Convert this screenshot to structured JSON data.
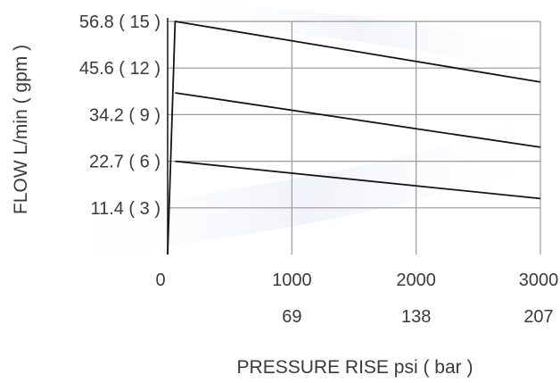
{
  "chart_data": {
    "type": "line",
    "title": "",
    "xlabel": "PRESSURE RISE psi ( bar )",
    "ylabel": "FLOW L/min ( gpm )",
    "xlim": [
      0,
      3000
    ],
    "ylim": [
      0,
      15
    ],
    "grid": true,
    "x_ticks": [
      {
        "value": 0,
        "label": "0",
        "sublabel": ""
      },
      {
        "value": 1000,
        "label": "1000",
        "sublabel": "69"
      },
      {
        "value": 2000,
        "label": "2000",
        "sublabel": "138"
      },
      {
        "value": 3000,
        "label": "3000",
        "sublabel": "207"
      }
    ],
    "y_ticks": [
      {
        "value": 3,
        "label": "11.4 ( 3 )"
      },
      {
        "value": 6,
        "label": "22.7 ( 6 )"
      },
      {
        "value": 9,
        "label": "34.2 ( 9 )"
      },
      {
        "value": 12,
        "label": "45.6 ( 12 )"
      },
      {
        "value": 15,
        "label": "56.8 ( 15 )"
      }
    ],
    "series": [
      {
        "x": [
          0,
          60,
          3000
        ],
        "y": [
          0,
          15.0,
          11.1
        ]
      },
      {
        "x": [
          60,
          3000
        ],
        "y": [
          10.4,
          6.9
        ]
      },
      {
        "x": [
          60,
          3000
        ],
        "y": [
          6.0,
          3.6
        ]
      }
    ]
  }
}
